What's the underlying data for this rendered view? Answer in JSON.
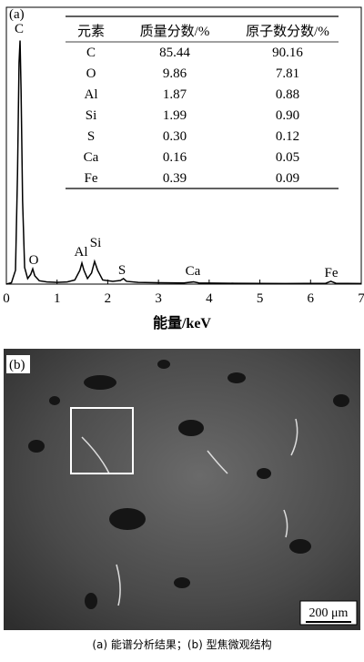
{
  "chart_data": {
    "type": "line",
    "panel_label": "(a)",
    "xlabel": "能量/keV",
    "x": [
      0,
      0.1,
      0.18,
      0.22,
      0.25,
      0.27,
      0.29,
      0.32,
      0.36,
      0.42,
      0.48,
      0.52,
      0.56,
      0.65,
      0.8,
      1.0,
      1.2,
      1.35,
      1.45,
      1.49,
      1.53,
      1.6,
      1.68,
      1.74,
      1.8,
      1.9,
      2.1,
      2.25,
      2.31,
      2.37,
      2.6,
      3.0,
      3.5,
      3.69,
      3.8,
      4.5,
      5.5,
      6.3,
      6.4,
      6.5,
      7
    ],
    "values": [
      0,
      0.5,
      5,
      40,
      80,
      88,
      70,
      30,
      6,
      2,
      3.5,
      5.5,
      3,
      1.2,
      0.8,
      0.6,
      0.8,
      1.5,
      5,
      7.6,
      5,
      2,
      4,
      8.2,
      5,
      1.5,
      1,
      1.3,
      2,
      1,
      0.6,
      0.5,
      0.4,
      0.8,
      0.4,
      0.3,
      0.2,
      0.3,
      1,
      0.3,
      0.2
    ],
    "color": "#000000",
    "xlim": [
      0,
      7
    ],
    "xticks": [
      0,
      1,
      2,
      3,
      4,
      5,
      6,
      7
    ],
    "ylim": [
      0,
      100
    ],
    "annotations": [
      "C",
      "O",
      "Al",
      "Si",
      "S",
      "Ca",
      "Fe"
    ]
  },
  "table": {
    "header": [
      "元素",
      "质量分数/%",
      "原子数分数/%"
    ],
    "rows": [
      [
        "C",
        "85.44",
        "90.16"
      ],
      [
        "O",
        "9.86",
        "7.81"
      ],
      [
        "Al",
        "1.87",
        "0.88"
      ],
      [
        "Si",
        "1.99",
        "0.90"
      ],
      [
        "S",
        "0.30",
        "0.12"
      ],
      [
        "Ca",
        "0.16",
        "0.05"
      ],
      [
        "Fe",
        "0.39",
        "0.09"
      ]
    ]
  },
  "panel_b": {
    "label": "(b)",
    "scale_bar": "200 μm"
  },
  "caption": "(a) 能谱分析结果；(b) 型焦微观结构"
}
